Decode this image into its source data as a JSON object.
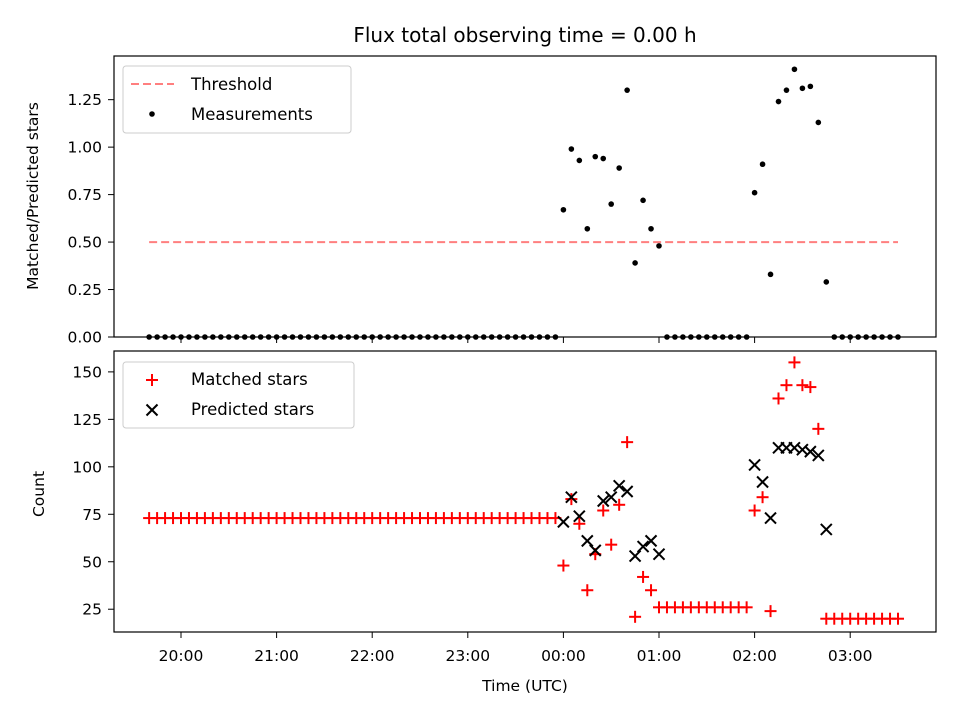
{
  "chart_data": [
    {
      "type": "scatter",
      "title": "Flux total observing time = 0.00 h",
      "xlabel": "",
      "ylabel": "Matched/Predicted stars",
      "ylim": [
        0,
        1.48
      ],
      "yticks": [
        "0.00",
        "0.25",
        "0.50",
        "0.75",
        "1.00",
        "1.25"
      ],
      "legend": [
        "Threshold",
        "Measurements"
      ],
      "legend_position": "top-left",
      "threshold": 0.5,
      "threshold_color": "#ff7f7f",
      "series": [
        {
          "name": "Measurements",
          "color": "#000000",
          "marker": "dot",
          "points": [
            [
              "19:40",
              0
            ],
            [
              "19:45",
              0
            ],
            [
              "19:50",
              0
            ],
            [
              "19:55",
              0
            ],
            [
              "20:00",
              0
            ],
            [
              "20:05",
              0
            ],
            [
              "20:10",
              0
            ],
            [
              "20:15",
              0
            ],
            [
              "20:20",
              0
            ],
            [
              "20:25",
              0
            ],
            [
              "20:30",
              0
            ],
            [
              "20:35",
              0
            ],
            [
              "20:40",
              0
            ],
            [
              "20:45",
              0
            ],
            [
              "20:50",
              0
            ],
            [
              "20:55",
              0
            ],
            [
              "21:00",
              0
            ],
            [
              "21:05",
              0
            ],
            [
              "21:10",
              0
            ],
            [
              "21:15",
              0
            ],
            [
              "21:20",
              0
            ],
            [
              "21:25",
              0
            ],
            [
              "21:30",
              0
            ],
            [
              "21:35",
              0
            ],
            [
              "21:40",
              0
            ],
            [
              "21:45",
              0
            ],
            [
              "21:50",
              0
            ],
            [
              "21:55",
              0
            ],
            [
              "22:00",
              0
            ],
            [
              "22:05",
              0
            ],
            [
              "22:10",
              0
            ],
            [
              "22:15",
              0
            ],
            [
              "22:20",
              0
            ],
            [
              "22:25",
              0
            ],
            [
              "22:30",
              0
            ],
            [
              "22:35",
              0
            ],
            [
              "22:40",
              0
            ],
            [
              "22:45",
              0
            ],
            [
              "22:50",
              0
            ],
            [
              "22:55",
              0
            ],
            [
              "23:00",
              0
            ],
            [
              "23:05",
              0
            ],
            [
              "23:10",
              0
            ],
            [
              "23:15",
              0
            ],
            [
              "23:20",
              0
            ],
            [
              "23:25",
              0
            ],
            [
              "23:30",
              0
            ],
            [
              "23:35",
              0
            ],
            [
              "23:40",
              0
            ],
            [
              "23:45",
              0
            ],
            [
              "23:50",
              0
            ],
            [
              "23:55",
              0
            ],
            [
              "00:00",
              0.67
            ],
            [
              "00:05",
              0.99
            ],
            [
              "00:10",
              0.93
            ],
            [
              "00:15",
              0.57
            ],
            [
              "00:20",
              0.95
            ],
            [
              "00:25",
              0.94
            ],
            [
              "00:30",
              0.7
            ],
            [
              "00:35",
              0.89
            ],
            [
              "00:40",
              1.3
            ],
            [
              "00:45",
              0.39
            ],
            [
              "00:50",
              0.72
            ],
            [
              "00:55",
              0.57
            ],
            [
              "01:00",
              0.48
            ],
            [
              "01:05",
              0
            ],
            [
              "01:10",
              0
            ],
            [
              "01:15",
              0
            ],
            [
              "01:20",
              0
            ],
            [
              "01:25",
              0
            ],
            [
              "01:30",
              0
            ],
            [
              "01:35",
              0
            ],
            [
              "01:40",
              0
            ],
            [
              "01:45",
              0
            ],
            [
              "01:50",
              0
            ],
            [
              "01:55",
              0
            ],
            [
              "02:00",
              0.76
            ],
            [
              "02:05",
              0.91
            ],
            [
              "02:10",
              0.33
            ],
            [
              "02:15",
              1.24
            ],
            [
              "02:20",
              1.3
            ],
            [
              "02:25",
              1.41
            ],
            [
              "02:30",
              1.31
            ],
            [
              "02:35",
              1.32
            ],
            [
              "02:40",
              1.13
            ],
            [
              "02:45",
              0.29
            ],
            [
              "02:50",
              0
            ],
            [
              "02:55",
              0
            ],
            [
              "03:00",
              0
            ],
            [
              "03:05",
              0
            ],
            [
              "03:10",
              0
            ],
            [
              "03:15",
              0
            ],
            [
              "03:20",
              0
            ],
            [
              "03:25",
              0
            ],
            [
              "03:30",
              0
            ]
          ]
        }
      ]
    },
    {
      "type": "scatter",
      "title": "",
      "xlabel": "Time (UTC)",
      "ylabel": "Count",
      "ylim": [
        13,
        161
      ],
      "yticks": [
        "25",
        "50",
        "75",
        "100",
        "125",
        "150"
      ],
      "xticks": [
        "20:00",
        "21:00",
        "22:00",
        "23:00",
        "00:00",
        "01:00",
        "02:00",
        "03:00"
      ],
      "legend": [
        "Matched stars",
        "Predicted stars"
      ],
      "legend_position": "top-left",
      "series": [
        {
          "name": "Matched stars",
          "color": "#ff0000",
          "marker": "plus",
          "points": [
            [
              "19:40",
              73
            ],
            [
              "19:45",
              73
            ],
            [
              "19:50",
              73
            ],
            [
              "19:55",
              73
            ],
            [
              "20:00",
              73
            ],
            [
              "20:05",
              73
            ],
            [
              "20:10",
              73
            ],
            [
              "20:15",
              73
            ],
            [
              "20:20",
              73
            ],
            [
              "20:25",
              73
            ],
            [
              "20:30",
              73
            ],
            [
              "20:35",
              73
            ],
            [
              "20:40",
              73
            ],
            [
              "20:45",
              73
            ],
            [
              "20:50",
              73
            ],
            [
              "20:55",
              73
            ],
            [
              "21:00",
              73
            ],
            [
              "21:05",
              73
            ],
            [
              "21:10",
              73
            ],
            [
              "21:15",
              73
            ],
            [
              "21:20",
              73
            ],
            [
              "21:25",
              73
            ],
            [
              "21:30",
              73
            ],
            [
              "21:35",
              73
            ],
            [
              "21:40",
              73
            ],
            [
              "21:45",
              73
            ],
            [
              "21:50",
              73
            ],
            [
              "21:55",
              73
            ],
            [
              "22:00",
              73
            ],
            [
              "22:05",
              73
            ],
            [
              "22:10",
              73
            ],
            [
              "22:15",
              73
            ],
            [
              "22:20",
              73
            ],
            [
              "22:25",
              73
            ],
            [
              "22:30",
              73
            ],
            [
              "22:35",
              73
            ],
            [
              "22:40",
              73
            ],
            [
              "22:45",
              73
            ],
            [
              "22:50",
              73
            ],
            [
              "22:55",
              73
            ],
            [
              "23:00",
              73
            ],
            [
              "23:05",
              73
            ],
            [
              "23:10",
              73
            ],
            [
              "23:15",
              73
            ],
            [
              "23:20",
              73
            ],
            [
              "23:25",
              73
            ],
            [
              "23:30",
              73
            ],
            [
              "23:35",
              73
            ],
            [
              "23:40",
              73
            ],
            [
              "23:45",
              73
            ],
            [
              "23:50",
              73
            ],
            [
              "23:55",
              73
            ],
            [
              "00:00",
              48
            ],
            [
              "00:05",
              83
            ],
            [
              "00:10",
              70
            ],
            [
              "00:15",
              35
            ],
            [
              "00:20",
              54
            ],
            [
              "00:25",
              77
            ],
            [
              "00:30",
              59
            ],
            [
              "00:35",
              80
            ],
            [
              "00:40",
              113
            ],
            [
              "00:45",
              21
            ],
            [
              "00:50",
              42
            ],
            [
              "00:55",
              35
            ],
            [
              "01:00",
              26
            ],
            [
              "01:05",
              26
            ],
            [
              "01:10",
              26
            ],
            [
              "01:15",
              26
            ],
            [
              "01:20",
              26
            ],
            [
              "01:25",
              26
            ],
            [
              "01:30",
              26
            ],
            [
              "01:35",
              26
            ],
            [
              "01:40",
              26
            ],
            [
              "01:45",
              26
            ],
            [
              "01:50",
              26
            ],
            [
              "01:55",
              26
            ],
            [
              "02:00",
              77
            ],
            [
              "02:05",
              84
            ],
            [
              "02:10",
              24
            ],
            [
              "02:15",
              136
            ],
            [
              "02:20",
              143
            ],
            [
              "02:25",
              155
            ],
            [
              "02:30",
              143
            ],
            [
              "02:35",
              142
            ],
            [
              "02:40",
              120
            ],
            [
              "02:45",
              20
            ],
            [
              "02:50",
              20
            ],
            [
              "02:55",
              20
            ],
            [
              "03:00",
              20
            ],
            [
              "03:05",
              20
            ],
            [
              "03:10",
              20
            ],
            [
              "03:15",
              20
            ],
            [
              "03:20",
              20
            ],
            [
              "03:25",
              20
            ],
            [
              "03:30",
              20
            ]
          ]
        },
        {
          "name": "Predicted stars",
          "color": "#000000",
          "marker": "x",
          "points": [
            [
              "00:00",
              71
            ],
            [
              "00:05",
              84
            ],
            [
              "00:10",
              74
            ],
            [
              "00:15",
              61
            ],
            [
              "00:20",
              56
            ],
            [
              "00:25",
              82
            ],
            [
              "00:30",
              84
            ],
            [
              "00:35",
              90
            ],
            [
              "00:40",
              87
            ],
            [
              "00:45",
              53
            ],
            [
              "00:50",
              58
            ],
            [
              "00:55",
              61
            ],
            [
              "01:00",
              54
            ],
            [
              "02:00",
              101
            ],
            [
              "02:05",
              92
            ],
            [
              "02:10",
              73
            ],
            [
              "02:15",
              110
            ],
            [
              "02:20",
              110
            ],
            [
              "02:25",
              110
            ],
            [
              "02:30",
              109
            ],
            [
              "02:35",
              108
            ],
            [
              "02:40",
              106
            ],
            [
              "02:45",
              67
            ]
          ]
        }
      ]
    }
  ]
}
